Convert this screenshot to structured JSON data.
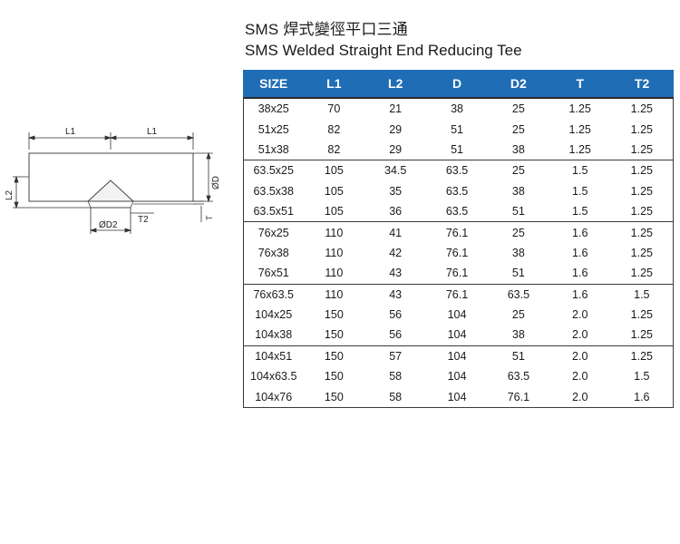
{
  "title": {
    "cn": "SMS 焊式變徑平口三通",
    "en": "SMS Welded Straight End Reducing Tee"
  },
  "drawing": {
    "label_l1_left": "L1",
    "label_l1_right": "L1",
    "label_l2": "L2",
    "label_d": "ØD",
    "label_d2": "ØD2",
    "label_t2": "T2",
    "label_t": "T"
  },
  "table": {
    "headers": [
      "SIZE",
      "L1",
      "L2",
      "D",
      "D2",
      "T",
      "T2"
    ],
    "rows": [
      [
        "38x25",
        "70",
        "21",
        "38",
        "25",
        "1.25",
        "1.25"
      ],
      [
        "51x25",
        "82",
        "29",
        "51",
        "25",
        "1.25",
        "1.25"
      ],
      [
        "51x38",
        "82",
        "29",
        "51",
        "38",
        "1.25",
        "1.25"
      ],
      [
        "63.5x25",
        "105",
        "34.5",
        "63.5",
        "25",
        "1.5",
        "1.25"
      ],
      [
        "63.5x38",
        "105",
        "35",
        "63.5",
        "38",
        "1.5",
        "1.25"
      ],
      [
        "63.5x51",
        "105",
        "36",
        "63.5",
        "51",
        "1.5",
        "1.25"
      ],
      [
        "76x25",
        "110",
        "41",
        "76.1",
        "25",
        "1.6",
        "1.25"
      ],
      [
        "76x38",
        "110",
        "42",
        "76.1",
        "38",
        "1.6",
        "1.25"
      ],
      [
        "76x51",
        "110",
        "43",
        "76.1",
        "51",
        "1.6",
        "1.25"
      ],
      [
        "76x63.5",
        "110",
        "43",
        "76.1",
        "63.5",
        "1.6",
        "1.5"
      ],
      [
        "104x25",
        "150",
        "56",
        "104",
        "25",
        "2.0",
        "1.25"
      ],
      [
        "104x38",
        "150",
        "56",
        "104",
        "38",
        "2.0",
        "1.25"
      ],
      [
        "104x51",
        "150",
        "57",
        "104",
        "51",
        "2.0",
        "1.25"
      ],
      [
        "104x63.5",
        "150",
        "58",
        "104",
        "63.5",
        "2.0",
        "1.5"
      ],
      [
        "104x76",
        "150",
        "58",
        "104",
        "76.1",
        "2.0",
        "1.6"
      ]
    ]
  }
}
